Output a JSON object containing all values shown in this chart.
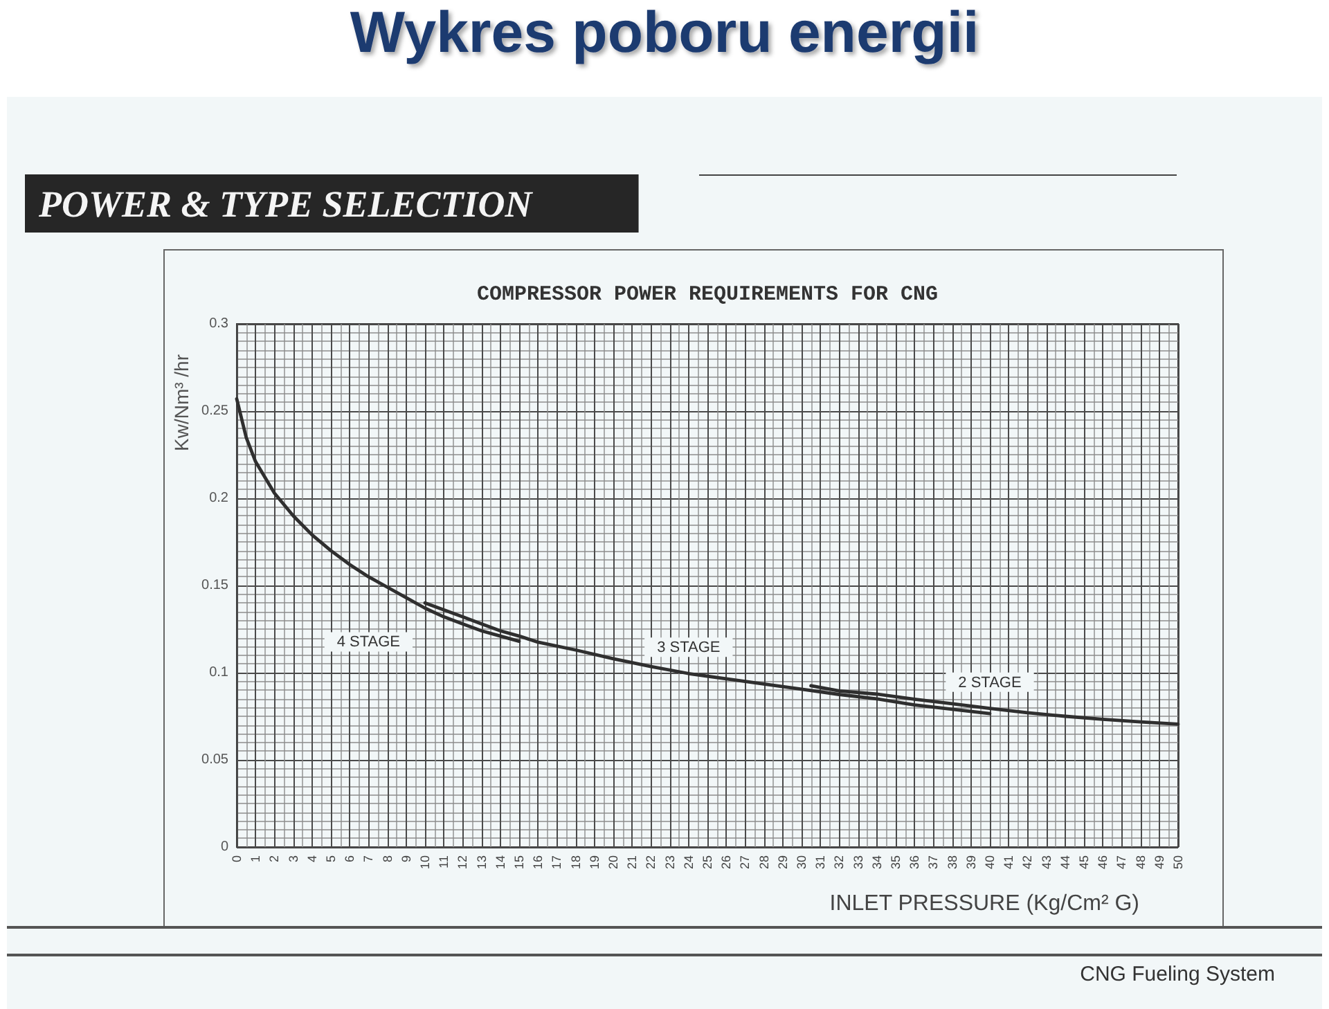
{
  "chart_data": {
    "type": "line",
    "title": "Wykres poboru energii",
    "subtitle": "POWER & TYPE SELECTION",
    "xlabel": "INLET PRESSURE (Kg/Cm² G)",
    "ylabel": "Kw/Nm³ /hr",
    "annotations": [
      "COMPRESSOR POWER REQUIREMENTS FOR CNG",
      "CNG Fueling System"
    ],
    "xlim": [
      0,
      50
    ],
    "xticks": [
      0,
      1,
      2,
      3,
      4,
      5,
      6,
      7,
      8,
      9,
      10,
      11,
      12,
      13,
      14,
      15,
      16,
      17,
      18,
      19,
      20,
      21,
      22,
      23,
      24,
      25,
      26,
      27,
      28,
      29,
      30,
      31,
      32,
      33,
      34,
      35,
      36,
      37,
      38,
      39,
      40,
      41,
      42,
      43,
      44,
      45,
      46,
      47,
      48,
      49,
      50
    ],
    "ylim": [
      0,
      0.3
    ],
    "yticks": [
      0,
      0.05,
      0.1,
      0.15,
      0.2,
      0.25,
      0.3
    ],
    "grid": true,
    "series": [
      {
        "name": "4 STAGE",
        "color": "#2f2f2f",
        "x": [
          0,
          0.25,
          0.5,
          1,
          2,
          3,
          4,
          5,
          6,
          7,
          8,
          9,
          10,
          11,
          12,
          13,
          14,
          15
        ],
        "values": [
          0.257,
          0.246,
          0.235,
          0.221,
          0.203,
          0.19,
          0.179,
          0.17,
          0.162,
          0.155,
          0.149,
          0.143,
          0.137,
          0.132,
          0.128,
          0.124,
          0.121,
          0.118
        ]
      },
      {
        "name": "3 STAGE",
        "color": "#2f2f2f",
        "x": [
          10,
          11,
          12,
          13,
          14,
          15,
          16,
          18,
          20,
          22,
          24,
          26,
          28,
          30,
          32,
          34,
          36,
          38,
          40
        ],
        "values": [
          0.14,
          0.136,
          0.132,
          0.128,
          0.124,
          0.121,
          0.1175,
          0.113,
          0.108,
          0.1035,
          0.0995,
          0.0965,
          0.0935,
          0.0905,
          0.0875,
          0.085,
          0.0815,
          0.079,
          0.0765
        ]
      },
      {
        "name": "2 STAGE",
        "color": "#2f2f2f",
        "x": [
          30.5,
          32,
          34,
          36,
          38,
          40,
          42,
          44,
          46,
          48,
          50
        ],
        "values": [
          0.0925,
          0.0895,
          0.0877,
          0.0848,
          0.0822,
          0.0795,
          0.077,
          0.075,
          0.0733,
          0.0718,
          0.0705
        ]
      }
    ]
  }
}
